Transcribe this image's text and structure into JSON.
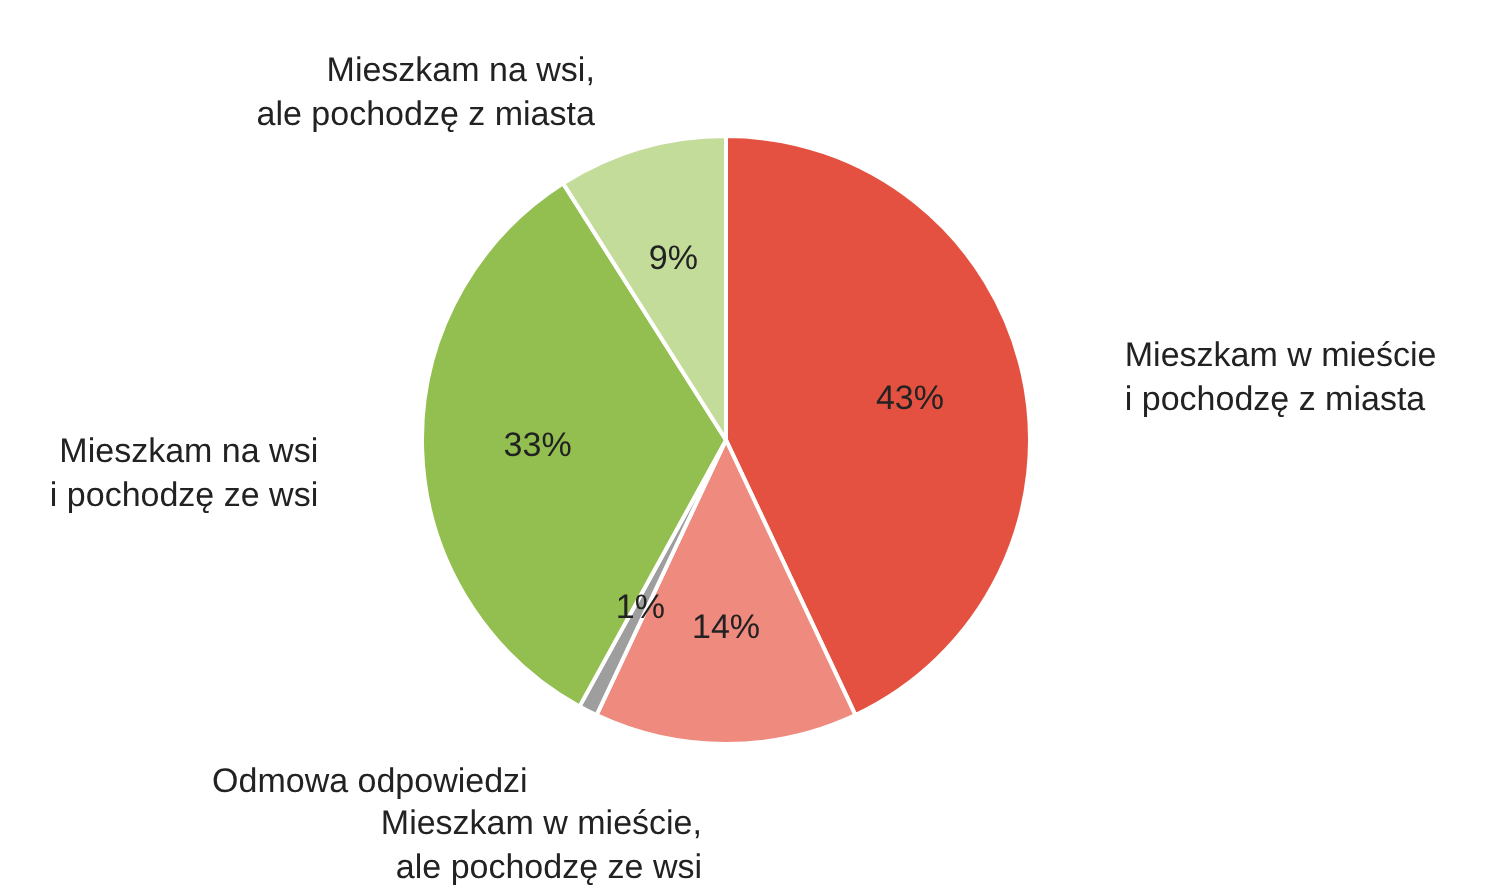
{
  "chart_data": {
    "type": "pie",
    "categories": [
      "Mieszkam w mieście\ni pochodzę z miasta",
      "Mieszkam w mieście,\nale pochodzę ze wsi",
      "Odmowa odpowiedzi",
      "Mieszkam na wsi\ni pochodzę ze wsi",
      "Mieszkam na wsi,\nale pochodzę z miasta"
    ],
    "values": [
      43,
      14,
      1,
      33,
      9
    ],
    "value_labels": [
      "43%",
      "14%",
      "1%",
      "33%",
      "9%"
    ],
    "colors": [
      "#e45141",
      "#ef8a7f",
      "#9e9e9e",
      "#92bf4f",
      "#c3dc9a"
    ]
  }
}
